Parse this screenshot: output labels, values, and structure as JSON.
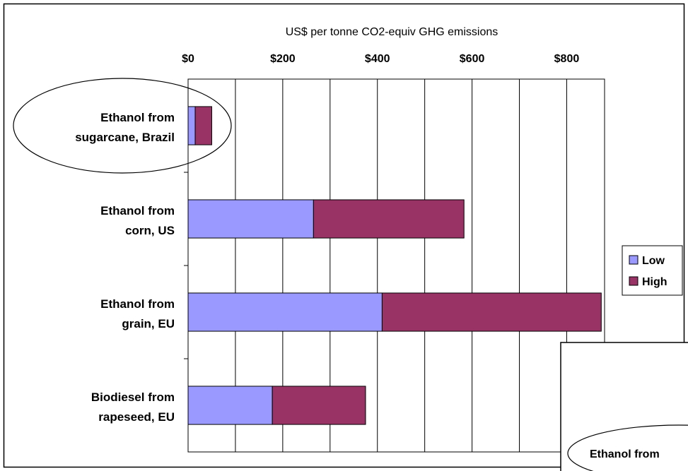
{
  "chart_data": {
    "type": "bar",
    "orientation": "horizontal",
    "stacked": true,
    "title": "US$ per tonne CO2-equiv GHG emissions",
    "xlim": [
      0,
      880
    ],
    "x_ticks": [
      0,
      200,
      400,
      600,
      800
    ],
    "x_tick_labels": [
      "$0",
      "$200",
      "$400",
      "$600",
      "$800"
    ],
    "x_axis_position": "top",
    "vertical_gridlines": true,
    "categories": [
      [
        "Ethanol from",
        "sugarcane, Brazil"
      ],
      [
        "Ethanol from",
        "corn, US"
      ],
      [
        "Ethanol from",
        "grain, EU"
      ],
      [
        "Biodiesel from",
        "rapeseed, EU"
      ]
    ],
    "series": [
      {
        "name": "Low",
        "color": "#9999ff",
        "values": [
          15,
          265,
          410,
          178
        ]
      },
      {
        "name": "High",
        "color": "#993366",
        "values": [
          35,
          318,
          463,
          197
        ]
      }
    ],
    "legend_position": "right",
    "highlighted_category": 0
  },
  "overlay": {
    "label": "Ethanol from"
  }
}
